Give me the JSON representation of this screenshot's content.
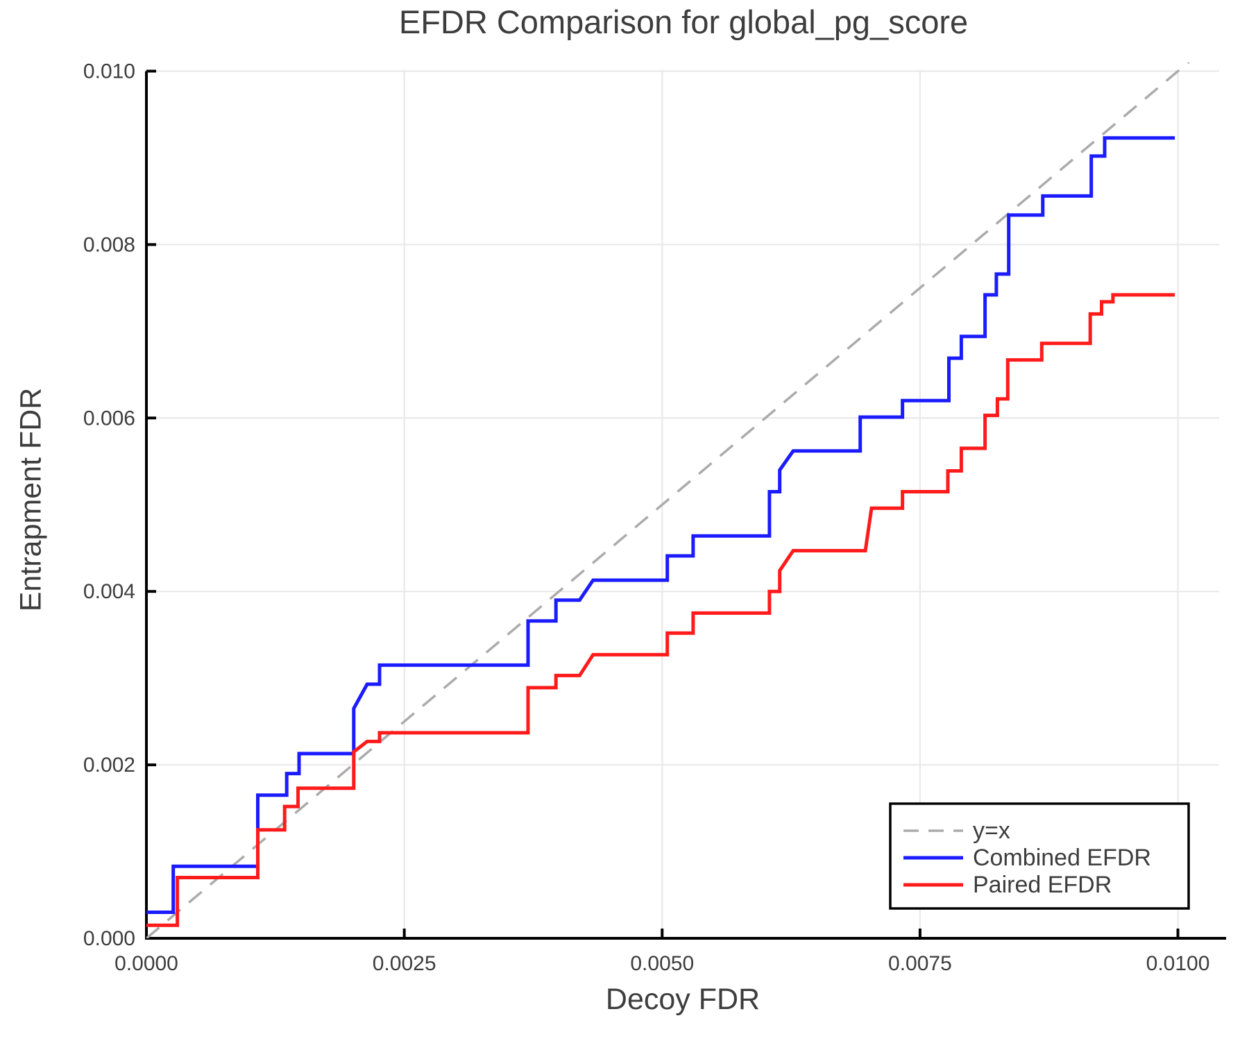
{
  "chart": {
    "title": "EFDR Comparison for global_pg_score",
    "xlabel": "Decoy FDR",
    "ylabel": "Entrapment FDR"
  },
  "chart_data": {
    "type": "line",
    "title": "EFDR Comparison for global_pg_score",
    "xlabel": "Decoy FDR",
    "ylabel": "Entrapment FDR",
    "xlim": [
      0,
      0.0104
    ],
    "ylim": [
      0,
      0.0101
    ],
    "grid": true,
    "legend_position": "bottom-right",
    "colors": {
      "grid": "#e7e7e7",
      "axis": "#000000",
      "text": "#3d3d3d",
      "background": "#ffffff",
      "reference": "#ababab",
      "combined": "#1b1bff",
      "paired": "#ff1b1b"
    },
    "x_ticks": {
      "values": [
        0,
        0.0025,
        0.005,
        0.0075,
        0.01
      ],
      "labels": [
        "0.0000",
        "0.0025",
        "0.0050",
        "0.0075",
        "0.0100"
      ]
    },
    "y_ticks": {
      "values": [
        0,
        0.002,
        0.004,
        0.006,
        0.008,
        0.01
      ],
      "labels": [
        "0.000",
        "0.002",
        "0.004",
        "0.006",
        "0.008",
        "0.010"
      ]
    },
    "series": [
      {
        "name": "y=x",
        "style": "dashed",
        "color": "#ababab",
        "width": 3.5,
        "points": [
          [
            0,
            0
          ],
          [
            0.0102,
            0.0102
          ]
        ]
      },
      {
        "name": "Combined EFDR",
        "style": "solid",
        "color": "#1b1bff",
        "width": 5,
        "points": [
          [
            0.0,
            0.0003
          ],
          [
            0.00026,
            0.0003
          ],
          [
            0.00026,
            0.00083
          ],
          [
            0.00108,
            0.00083
          ],
          [
            0.00108,
            0.00165
          ],
          [
            0.00136,
            0.00165
          ],
          [
            0.00136,
            0.0019
          ],
          [
            0.00148,
            0.0019
          ],
          [
            0.00148,
            0.00213
          ],
          [
            0.00201,
            0.00213
          ],
          [
            0.00201,
            0.00265
          ],
          [
            0.00214,
            0.00293
          ],
          [
            0.00226,
            0.00293
          ],
          [
            0.00226,
            0.00315
          ],
          [
            0.0037,
            0.00315
          ],
          [
            0.0037,
            0.00366
          ],
          [
            0.00397,
            0.00366
          ],
          [
            0.00397,
            0.0039
          ],
          [
            0.0042,
            0.0039
          ],
          [
            0.00433,
            0.00413
          ],
          [
            0.00505,
            0.00413
          ],
          [
            0.00505,
            0.00441
          ],
          [
            0.0053,
            0.00441
          ],
          [
            0.0053,
            0.00464
          ],
          [
            0.00604,
            0.00464
          ],
          [
            0.00604,
            0.00515
          ],
          [
            0.00614,
            0.00515
          ],
          [
            0.00614,
            0.0054
          ],
          [
            0.00627,
            0.00562
          ],
          [
            0.00692,
            0.00562
          ],
          [
            0.00692,
            0.00601
          ],
          [
            0.00733,
            0.00601
          ],
          [
            0.00733,
            0.0062
          ],
          [
            0.00778,
            0.0062
          ],
          [
            0.00778,
            0.00669
          ],
          [
            0.0079,
            0.00669
          ],
          [
            0.0079,
            0.00694
          ],
          [
            0.00813,
            0.00694
          ],
          [
            0.00813,
            0.00742
          ],
          [
            0.00824,
            0.00742
          ],
          [
            0.00824,
            0.00766
          ],
          [
            0.00836,
            0.00766
          ],
          [
            0.00836,
            0.00834
          ],
          [
            0.00869,
            0.00834
          ],
          [
            0.00869,
            0.00856
          ],
          [
            0.00916,
            0.00856
          ],
          [
            0.00916,
            0.00902
          ],
          [
            0.00929,
            0.00902
          ],
          [
            0.00929,
            0.00923
          ],
          [
            0.00997,
            0.00923
          ]
        ]
      },
      {
        "name": "Paired EFDR",
        "style": "solid",
        "color": "#ff1b1b",
        "width": 5,
        "points": [
          [
            0.0,
            0.00015
          ],
          [
            0.0003,
            0.00015
          ],
          [
            0.0003,
            0.0007
          ],
          [
            0.00108,
            0.0007
          ],
          [
            0.00108,
            0.00125
          ],
          [
            0.00134,
            0.00125
          ],
          [
            0.00134,
            0.00152
          ],
          [
            0.00147,
            0.00152
          ],
          [
            0.00147,
            0.00173
          ],
          [
            0.00201,
            0.00173
          ],
          [
            0.00201,
            0.00215
          ],
          [
            0.00214,
            0.00227
          ],
          [
            0.00226,
            0.00227
          ],
          [
            0.00226,
            0.00237
          ],
          [
            0.0037,
            0.00237
          ],
          [
            0.0037,
            0.00289
          ],
          [
            0.00397,
            0.00289
          ],
          [
            0.00397,
            0.00303
          ],
          [
            0.0042,
            0.00303
          ],
          [
            0.00433,
            0.00327
          ],
          [
            0.00505,
            0.00327
          ],
          [
            0.00505,
            0.00352
          ],
          [
            0.0053,
            0.00352
          ],
          [
            0.0053,
            0.00375
          ],
          [
            0.00604,
            0.00375
          ],
          [
            0.00604,
            0.004
          ],
          [
            0.00614,
            0.004
          ],
          [
            0.00614,
            0.00424
          ],
          [
            0.00627,
            0.00447
          ],
          [
            0.00697,
            0.00447
          ],
          [
            0.00703,
            0.00496
          ],
          [
            0.00733,
            0.00496
          ],
          [
            0.00733,
            0.00515
          ],
          [
            0.00777,
            0.00515
          ],
          [
            0.00777,
            0.00539
          ],
          [
            0.0079,
            0.00539
          ],
          [
            0.0079,
            0.00565
          ],
          [
            0.00813,
            0.00565
          ],
          [
            0.00813,
            0.00603
          ],
          [
            0.00825,
            0.00603
          ],
          [
            0.00825,
            0.00622
          ],
          [
            0.00835,
            0.00622
          ],
          [
            0.00835,
            0.00667
          ],
          [
            0.00868,
            0.00667
          ],
          [
            0.00868,
            0.00686
          ],
          [
            0.00915,
            0.00686
          ],
          [
            0.00915,
            0.0072
          ],
          [
            0.00926,
            0.0072
          ],
          [
            0.00926,
            0.00734
          ],
          [
            0.00937,
            0.00734
          ],
          [
            0.00937,
            0.00742
          ],
          [
            0.00997,
            0.00742
          ]
        ]
      }
    ]
  }
}
